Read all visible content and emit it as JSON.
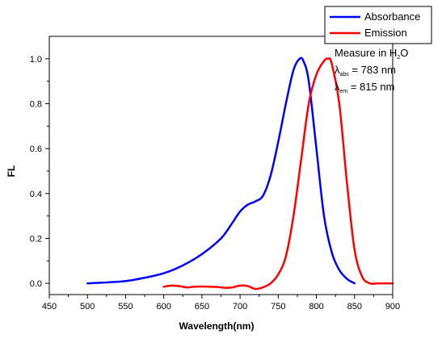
{
  "chart_data": {
    "type": "line",
    "xlabel": "Wavelength(nm)",
    "ylabel": "FL",
    "xlim": [
      450,
      900
    ],
    "ylim": [
      -0.05,
      1.1
    ],
    "xticks": [
      450,
      500,
      550,
      600,
      650,
      700,
      750,
      800,
      850,
      900
    ],
    "xtick_labels": [
      "450",
      "500",
      "550",
      "600",
      "650",
      "700",
      "750",
      "800",
      "850",
      "900"
    ],
    "yticks": [
      0.0,
      0.2,
      0.4,
      0.6,
      0.8,
      1.0
    ],
    "ytick_labels": [
      "0.0",
      "0.2",
      "0.4",
      "0.6",
      "0.8",
      "1.0"
    ],
    "grid": false,
    "legend_position": "top-right",
    "series": [
      {
        "name": "Absorbance",
        "color": "#0000ff",
        "x": [
          500,
          525,
          550,
          575,
          600,
          625,
          650,
          675,
          690,
          700,
          710,
          720,
          730,
          740,
          750,
          760,
          770,
          778,
          783,
          790,
          800,
          810,
          820,
          830,
          840,
          850
        ],
        "y": [
          0.0,
          0.004,
          0.01,
          0.025,
          0.045,
          0.08,
          0.13,
          0.2,
          0.27,
          0.32,
          0.35,
          0.365,
          0.39,
          0.48,
          0.63,
          0.8,
          0.95,
          1.0,
          0.99,
          0.9,
          0.6,
          0.3,
          0.14,
          0.06,
          0.02,
          0.0
        ]
      },
      {
        "name": "Emission",
        "color": "#ff0000",
        "x": [
          600,
          610,
          620,
          630,
          640,
          650,
          660,
          670,
          680,
          690,
          700,
          710,
          720,
          730,
          740,
          750,
          760,
          770,
          780,
          790,
          800,
          810,
          815,
          820,
          830,
          840,
          850,
          860,
          870,
          880,
          890,
          900
        ],
        "y": [
          -0.015,
          -0.01,
          -0.012,
          -0.018,
          -0.015,
          -0.014,
          -0.015,
          -0.016,
          -0.02,
          -0.018,
          -0.01,
          -0.012,
          -0.025,
          -0.018,
          0.0,
          0.04,
          0.12,
          0.3,
          0.55,
          0.8,
          0.93,
          0.99,
          1.0,
          0.98,
          0.8,
          0.45,
          0.15,
          0.03,
          0.0,
          0.0,
          0.0,
          0.0
        ]
      }
    ],
    "annotations": {
      "line1_main": "Measure in H",
      "line1_sub": "2",
      "line1_tail": "O",
      "line2_main": "λ",
      "line2_sub": "abs",
      "line2_tail": " = 783 nm",
      "line3_main": "λ",
      "line3_sub": "em",
      "line3_tail": " = 815 nm"
    }
  }
}
